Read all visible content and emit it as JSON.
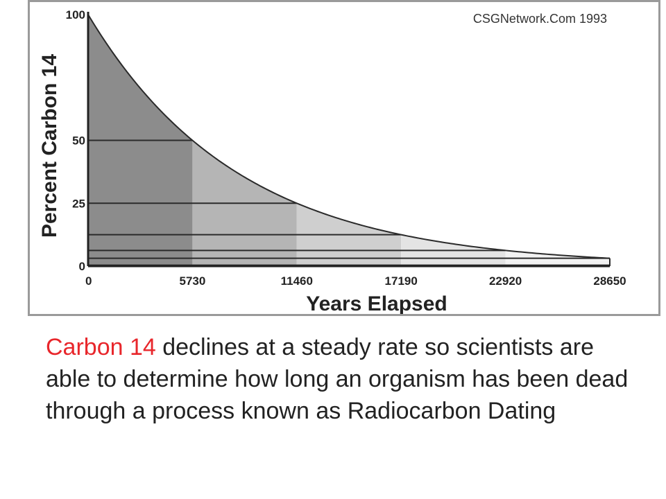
{
  "chart_data": {
    "type": "area",
    "title": "",
    "xlabel": "Years Elapsed",
    "ylabel": "Percent Carbon 14",
    "watermark": "CSGNetwork.Com 1993",
    "x_ticks": [
      "0",
      "5730",
      "11460",
      "17190",
      "22920",
      "28650"
    ],
    "y_ticks": [
      "0",
      "25",
      "50",
      "100"
    ],
    "xlim": [
      0,
      28650
    ],
    "ylim": [
      0,
      100
    ],
    "half_life": 5730,
    "series": [
      {
        "x": [
          0,
          5730,
          11460,
          17190,
          22920,
          28650
        ],
        "values": [
          100,
          50,
          25,
          12.5,
          6.25,
          3.125
        ]
      }
    ],
    "colors": {
      "band_1": "#8c8c8c",
      "band_2": "#b5b5b5",
      "band_3": "#cfcfcf",
      "band_4": "#e4e4e4",
      "band_5": "#f2f2f2",
      "curve": "#2a2a2a"
    },
    "grid": false
  },
  "caption": {
    "highlight": "Carbon 14",
    "rest": " declines at a steady rate so scientists are able to determine how long an organism has been dead through a process known as Radiocarbon Dating",
    "highlight_color": "#e8262b"
  }
}
